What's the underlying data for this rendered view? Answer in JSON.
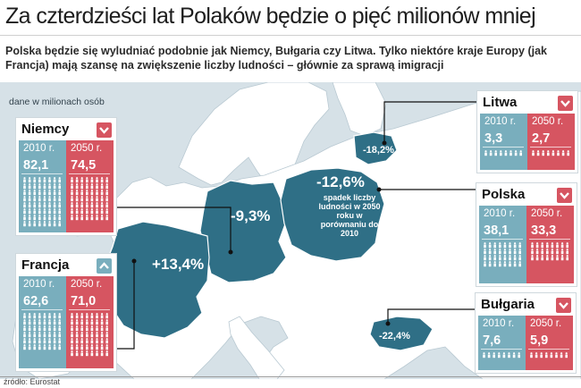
{
  "title": "Za czterdzieści lat Polaków będzie o pięć milionów mniej",
  "subtitle": "Polska będzie się wyludniać podobnie jak Niemcy, Bułgaria czy Litwa. Tylko niektóre kraje Europy (jak Francja) mają szansę na zwiększenie liczby ludności – głównie za sprawą imigracji",
  "unit_note": "dane w milionach osób",
  "source": "źródło: Eurostat",
  "map_note": "spadek liczby ludności w 2050 roku w porównaniu do 2010",
  "colors": {
    "col_2010": "#79aebd",
    "col_2050": "#d65561",
    "country_fill": "#2f6f86",
    "sea": "#d6e1e7",
    "land": "#ffffff"
  },
  "chart_data": {
    "type": "table",
    "title": "Za czterdzieści lat Polaków będzie o pięć milionów mniej",
    "unit": "dane w milionach osób",
    "columns": [
      "2010 r.",
      "2050 r."
    ],
    "rows": [
      {
        "country": "Niemcy",
        "y2010": "82,1",
        "y2050": "74,5",
        "change": "-9,3%",
        "trend": "down",
        "trend_icon": "arrow-down-icon"
      },
      {
        "country": "Francja",
        "y2010": "62,6",
        "y2050": "71,0",
        "change": "+13,4%",
        "trend": "up",
        "trend_icon": "arrow-up-icon"
      },
      {
        "country": "Litwa",
        "y2010": "3,3",
        "y2050": "2,7",
        "change": "-18,2%",
        "trend": "down",
        "trend_icon": "arrow-down-icon"
      },
      {
        "country": "Polska",
        "y2010": "38,1",
        "y2050": "33,3",
        "change": "-12,6%",
        "trend": "down",
        "trend_icon": "arrow-down-icon"
      },
      {
        "country": "Bułgaria",
        "y2010": "7,6",
        "y2050": "5,9",
        "change": "-22,4%",
        "trend": "down",
        "trend_icon": "arrow-down-icon"
      }
    ]
  }
}
